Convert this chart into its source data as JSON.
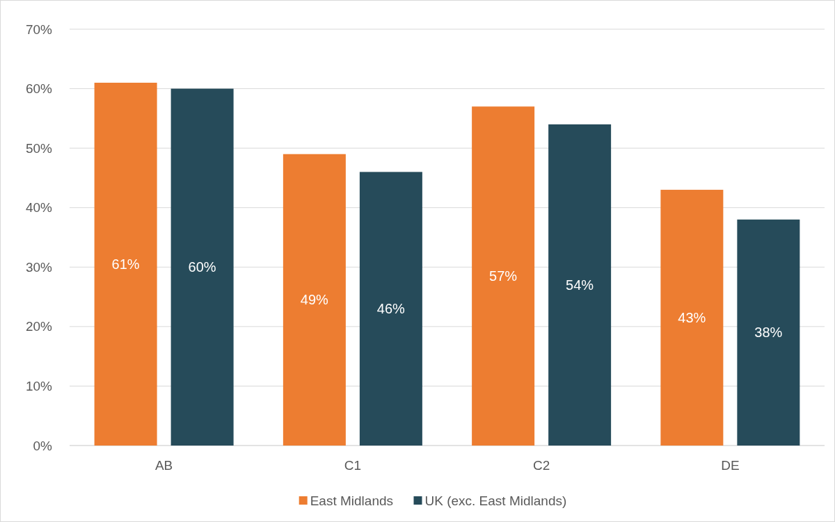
{
  "chart_data": {
    "type": "bar",
    "categories": [
      "AB",
      "C1",
      "C2",
      "DE"
    ],
    "series": [
      {
        "name": "East Midlands",
        "color": "#ed7d31",
        "values": [
          61,
          49,
          57,
          43
        ],
        "value_labels": [
          "61%",
          "49%",
          "57%",
          "43%"
        ]
      },
      {
        "name": "UK (exc. East Midlands)",
        "color": "#264b5a",
        "values": [
          60,
          46,
          54,
          38
        ],
        "value_labels": [
          "60%",
          "46%",
          "54%",
          "38%"
        ]
      }
    ],
    "ylim": [
      0,
      70
    ],
    "yticks": [
      {
        "value": 0,
        "label": "0%"
      },
      {
        "value": 10,
        "label": "10%"
      },
      {
        "value": 20,
        "label": "20%"
      },
      {
        "value": 30,
        "label": "30%"
      },
      {
        "value": 40,
        "label": "40%"
      },
      {
        "value": 50,
        "label": "50%"
      },
      {
        "value": 60,
        "label": "60%"
      },
      {
        "value": 70,
        "label": "70%"
      }
    ],
    "grid": "y",
    "legend": "bottom"
  }
}
